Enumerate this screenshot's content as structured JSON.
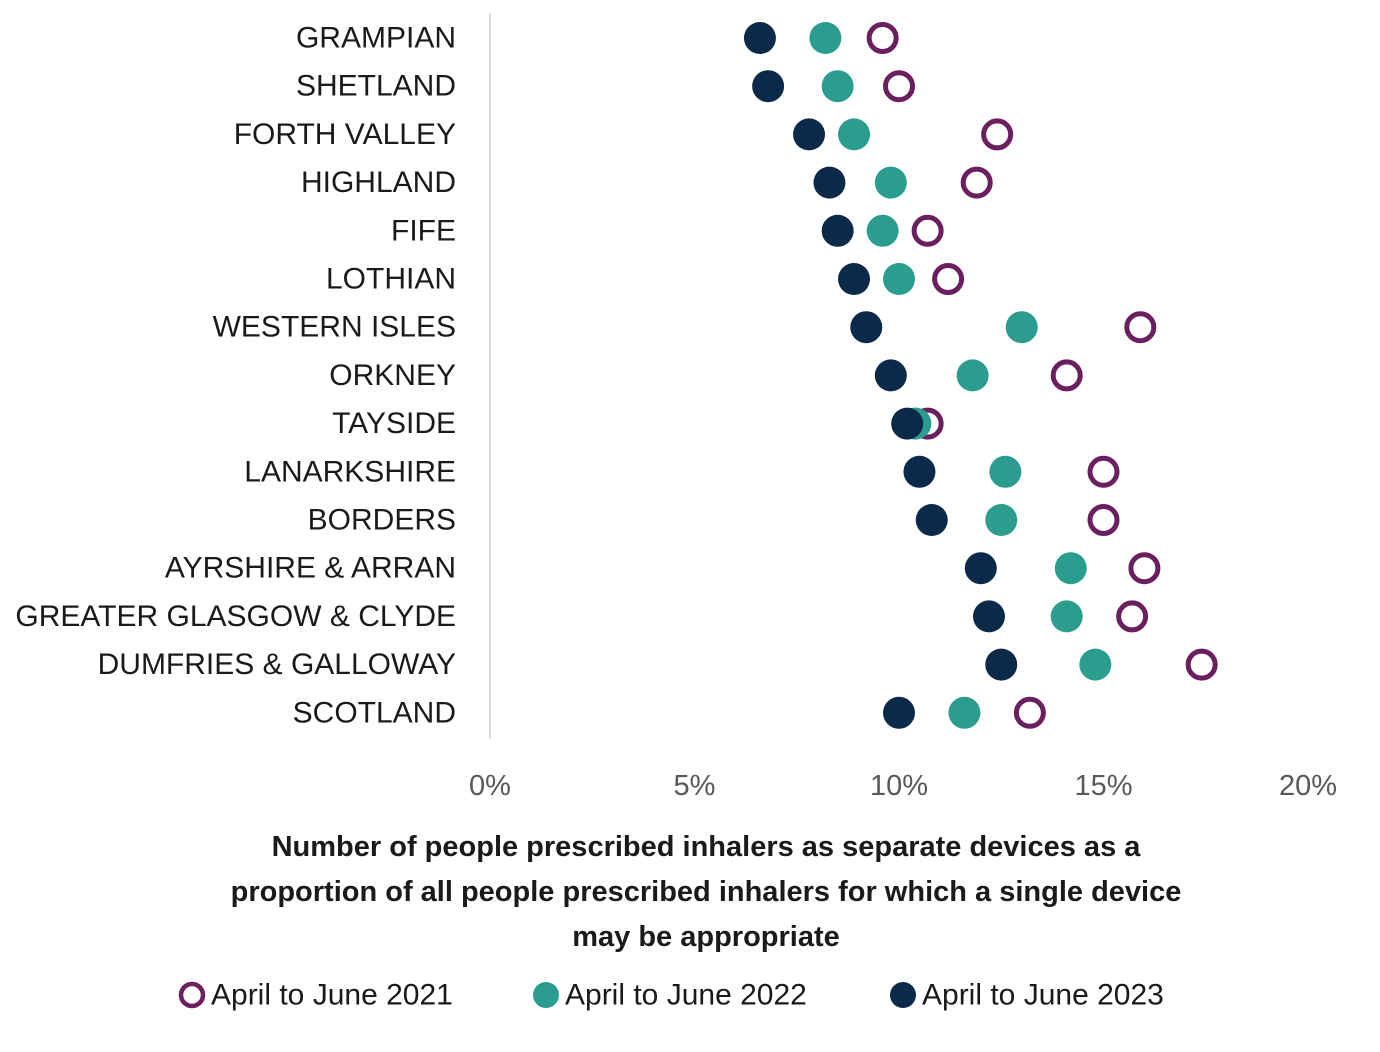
{
  "chart_data": {
    "type": "scatter",
    "title": "",
    "xlabel_lines": [
      "Number of people prescribed inhalers as separate devices as a",
      "proportion of all people prescribed inhalers for which a single device",
      "may be appropriate"
    ],
    "ylabel": "",
    "xlim": [
      0,
      20
    ],
    "x_ticks": [
      0,
      5,
      10,
      15,
      20
    ],
    "x_tick_labels": [
      "0%",
      "5%",
      "10%",
      "15%",
      "20%"
    ],
    "x_unit": "%",
    "legend_position": "bottom",
    "grid": false,
    "categories": [
      "GRAMPIAN",
      "SHETLAND",
      "FORTH VALLEY",
      "HIGHLAND",
      "FIFE",
      "LOTHIAN",
      "WESTERN ISLES",
      "ORKNEY",
      "TAYSIDE",
      "LANARKSHIRE",
      "BORDERS",
      "AYRSHIRE & ARRAN",
      "GREATER GLASGOW & CLYDE",
      "DUMFRIES & GALLOWAY",
      "SCOTLAND"
    ],
    "series": [
      {
        "name": "April to June 2021",
        "color": "#6b1f5e",
        "marker": "hollow-circle",
        "values": [
          9.6,
          10.0,
          12.4,
          11.9,
          10.7,
          11.2,
          15.9,
          14.1,
          10.7,
          15.0,
          15.0,
          16.0,
          15.7,
          17.4,
          13.2
        ]
      },
      {
        "name": "April to June 2022",
        "color": "#2a9d8f",
        "marker": "filled-circle",
        "values": [
          8.2,
          8.5,
          8.9,
          9.8,
          9.6,
          10.0,
          13.0,
          11.8,
          10.4,
          12.6,
          12.5,
          14.2,
          14.1,
          14.8,
          11.6
        ]
      },
      {
        "name": "April to June 2023",
        "color": "#0b2a4a",
        "marker": "filled-circle",
        "values": [
          6.6,
          6.8,
          7.8,
          8.3,
          8.5,
          8.9,
          9.2,
          9.8,
          10.2,
          10.5,
          10.8,
          12.0,
          12.2,
          12.5,
          10.0
        ]
      }
    ]
  }
}
